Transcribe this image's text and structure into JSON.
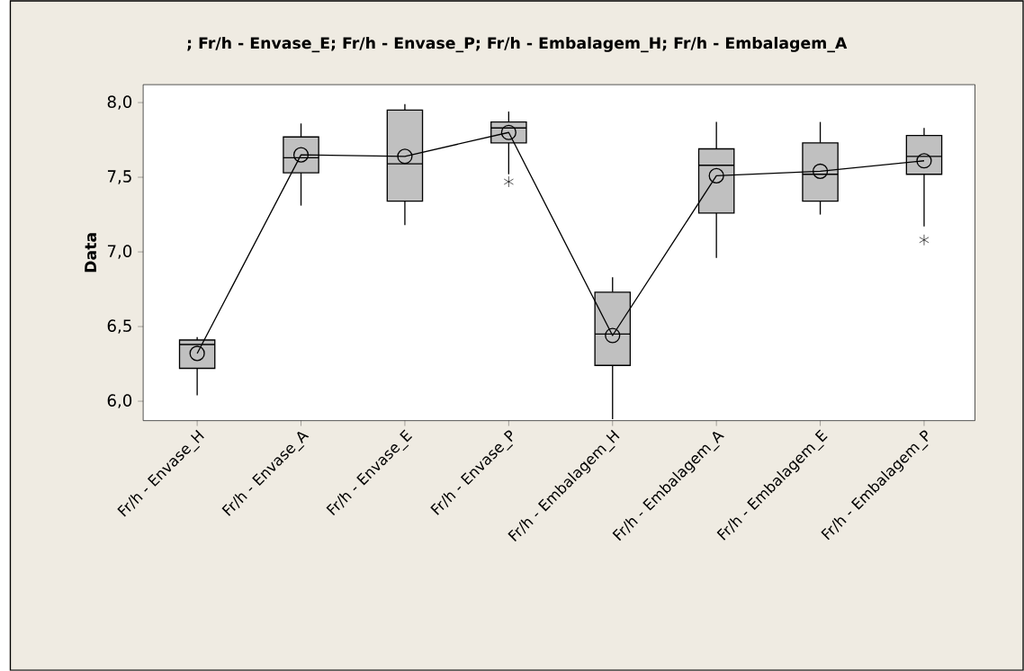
{
  "chart_data": {
    "type": "box",
    "title": "; Fr/h - Envase_E; Fr/h - Envase_P; Fr/h - Embalagem_H; Fr/h - Embalagem_A",
    "ylabel": "Data",
    "categories": [
      "Fr/h - Envase_H",
      "Fr/h - Envase_A",
      "Fr/h - Envase_E",
      "Fr/h - Envase_P",
      "Fr/h - Embalagem_H",
      "Fr/h - Embalagem_A",
      "Fr/h - Embalagem_E",
      "Fr/h - Embalagem_P"
    ],
    "color": "#c0c0c0",
    "boxes": [
      {
        "low": 6.04,
        "q1": 6.22,
        "median": 6.38,
        "q3": 6.41,
        "high": 6.43
      },
      {
        "low": 7.31,
        "q1": 7.53,
        "median": 7.63,
        "q3": 7.77,
        "high": 7.86
      },
      {
        "low": 7.18,
        "q1": 7.34,
        "median": 7.59,
        "q3": 7.95,
        "high": 7.99
      },
      {
        "low": 7.52,
        "q1": 7.73,
        "median": 7.83,
        "q3": 7.87,
        "high": 7.94,
        "outliers": [
          7.47
        ]
      },
      {
        "low": 5.88,
        "q1": 6.24,
        "median": 6.45,
        "q3": 6.73,
        "high": 6.83
      },
      {
        "low": 6.96,
        "q1": 7.26,
        "median": 7.58,
        "q3": 7.69,
        "high": 7.87
      },
      {
        "low": 7.25,
        "q1": 7.34,
        "median": 7.52,
        "q3": 7.73,
        "high": 7.87
      },
      {
        "low": 7.17,
        "q1": 7.52,
        "median": 7.64,
        "q3": 7.78,
        "high": 7.83,
        "outliers": [
          7.08
        ]
      }
    ],
    "series": [
      {
        "type": "line",
        "color": "#000000",
        "values": [
          6.32,
          7.65,
          7.64,
          7.8,
          6.44,
          7.51,
          7.54,
          7.61
        ]
      }
    ],
    "marker": "circle",
    "grid": false,
    "legend": false,
    "ylim": [
      5.87,
      8.12
    ],
    "yticks": [
      {
        "value": 6.0,
        "label": "6,0"
      },
      {
        "value": 6.5,
        "label": "6,5"
      },
      {
        "value": 7.0,
        "label": "7,0"
      },
      {
        "value": 7.5,
        "label": "7,5"
      },
      {
        "value": 8.0,
        "label": "8,0"
      }
    ]
  }
}
